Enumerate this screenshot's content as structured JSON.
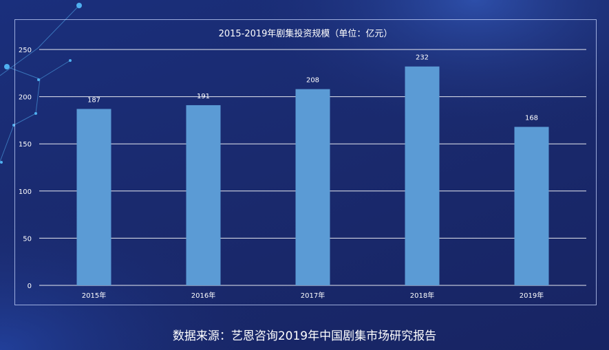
{
  "chart_data": {
    "type": "bar",
    "title": "2015-2019年剧集投资规模（单位：亿元）",
    "categories": [
      "2015年",
      "2016年",
      "2017年",
      "2018年",
      "2019年"
    ],
    "values": [
      187,
      191,
      208,
      232,
      168
    ],
    "data_labels": [
      "187",
      "191",
      "208",
      "232",
      "168"
    ],
    "ylim": [
      0,
      250
    ],
    "yticks": [
      "0",
      "50",
      "100",
      "150",
      "200",
      "250"
    ],
    "grid": true,
    "legend": "none",
    "bar_color": "#5b9bd5"
  },
  "source": {
    "text": "数据来源：艺恩咨询2019年中国剧集市场研究报告"
  },
  "colors": {
    "background": "#1a2a6e",
    "gridline": "#ffffff",
    "text": "#ffffff"
  }
}
